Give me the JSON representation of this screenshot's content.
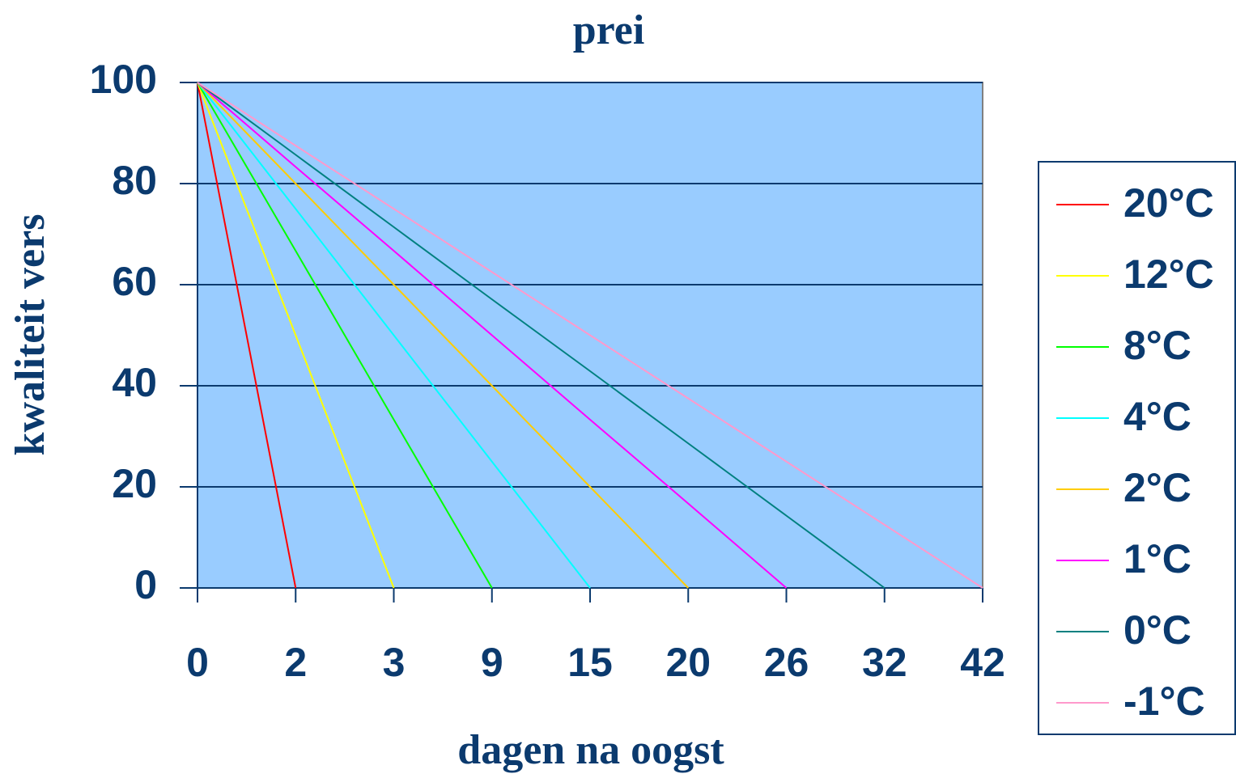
{
  "chart_data": {
    "type": "line",
    "title": "prei",
    "x_label": "dagen na oogst",
    "y_label": "kwaliteit vers",
    "categories": [
      "0",
      "2",
      "3",
      "9",
      "15",
      "20",
      "26",
      "32",
      "42"
    ],
    "ylim": [
      0,
      100
    ],
    "yticks": [
      0,
      20,
      40,
      60,
      80,
      100
    ],
    "grid": true,
    "plot_background": "#99ccff",
    "legend": "right",
    "series": [
      {
        "name": "20°C",
        "color": "#ff0000",
        "values": [
          100,
          0,
          null,
          null,
          null,
          null,
          null,
          null,
          null
        ]
      },
      {
        "name": "12°C",
        "color": "#ffff00",
        "values": [
          100,
          50,
          0,
          null,
          null,
          null,
          null,
          null,
          null
        ]
      },
      {
        "name": "8°C",
        "color": "#00ff00",
        "values": [
          100,
          66.7,
          33.3,
          0,
          null,
          null,
          null,
          null,
          null
        ]
      },
      {
        "name": "4°C",
        "color": "#00ffff",
        "values": [
          100,
          75,
          50,
          25,
          0,
          null,
          null,
          null,
          null
        ]
      },
      {
        "name": "2°C",
        "color": "#ffcc00",
        "values": [
          100,
          80,
          60,
          40,
          20,
          0,
          null,
          null,
          null
        ]
      },
      {
        "name": "1°C",
        "color": "#ff00ff",
        "values": [
          100,
          83.3,
          66.7,
          50,
          33.3,
          16.7,
          0,
          null,
          null
        ]
      },
      {
        "name": "0°C",
        "color": "#008080",
        "values": [
          100,
          85.7,
          71.4,
          57.1,
          42.9,
          28.6,
          14.3,
          0,
          null
        ]
      },
      {
        "name": "-1°C",
        "color": "#ff99cc",
        "values": [
          100,
          87.5,
          75,
          62.5,
          50,
          37.5,
          25,
          12.5,
          0
        ]
      }
    ]
  }
}
